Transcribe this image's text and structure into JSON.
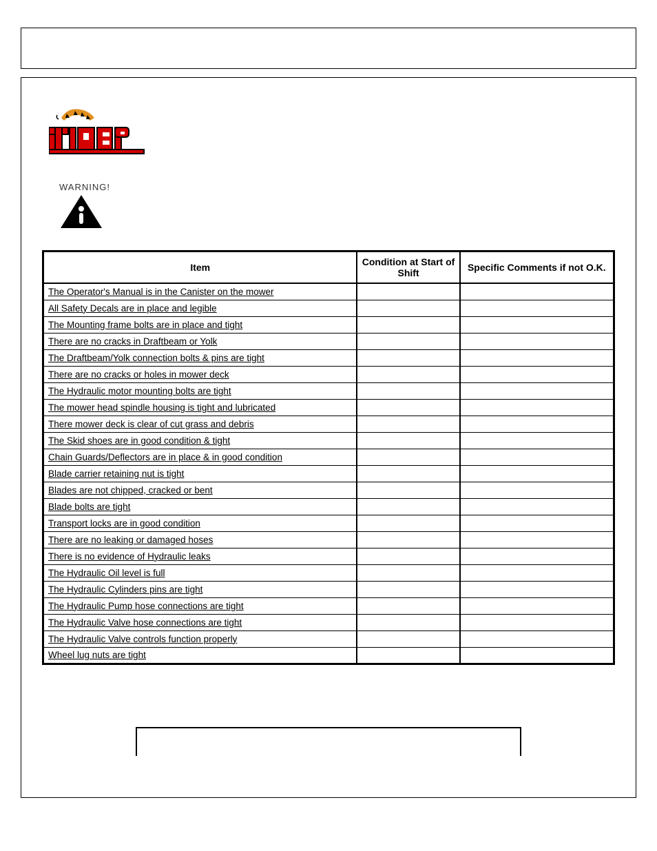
{
  "warning_label": "WARNING!",
  "table": {
    "columns": [
      "Item",
      "Condition at Start of Shift",
      "Specific Comments if not O.K."
    ],
    "rows": [
      [
        "The Operator's Manual is in the Canister on the mower",
        "",
        ""
      ],
      [
        "All Safety Decals are in place and legible",
        "",
        ""
      ],
      [
        "The Mounting frame bolts are in place and tight",
        "",
        ""
      ],
      [
        "There are no cracks in Draftbeam or Yolk",
        "",
        ""
      ],
      [
        "The Draftbeam/Yolk connection bolts & pins are tight",
        "",
        ""
      ],
      [
        "There are no cracks or holes in mower deck",
        "",
        ""
      ],
      [
        "The Hydraulic motor mounting bolts are tight",
        "",
        ""
      ],
      [
        "The mower head spindle housing is tight and lubricated",
        "",
        ""
      ],
      [
        "There mower deck is clear of cut grass and debris",
        "",
        ""
      ],
      [
        "The Skid shoes are in good condition & tight",
        "",
        ""
      ],
      [
        "Chain Guards/Deflectors are in place & in good condition",
        "",
        ""
      ],
      [
        "Blade carrier retaining nut is tight",
        "",
        ""
      ],
      [
        "Blades are not chipped, cracked or bent",
        "",
        ""
      ],
      [
        "Blade bolts are tight",
        "",
        ""
      ],
      [
        "Transport locks are in good condition",
        "",
        ""
      ],
      [
        "There are no leaking or damaged hoses",
        "",
        ""
      ],
      [
        "There is no evidence of Hydraulic leaks",
        "",
        ""
      ],
      [
        "The Hydraulic Oil level is full",
        "",
        ""
      ],
      [
        "The Hydraulic Cylinders pins are tight",
        "",
        ""
      ],
      [
        "The Hydraulic Pump hose connections are tight",
        "",
        ""
      ],
      [
        "The Hydraulic Valve hose connections are tight",
        "",
        ""
      ],
      [
        "The Hydraulic Valve controls function properly",
        "",
        ""
      ],
      [
        "Wheel lug nuts are tight",
        "",
        ""
      ]
    ]
  },
  "logo": {
    "brand_color_red": "#d40000",
    "brand_color_dark": "#000000",
    "tiger_body": "#e09020",
    "tiger_stripe": "#000000"
  },
  "colors": {
    "border": "#000000",
    "background": "#ffffff",
    "text": "#000000"
  }
}
